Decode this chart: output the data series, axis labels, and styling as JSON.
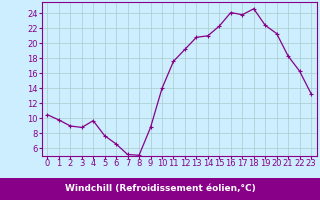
{
  "x": [
    0,
    1,
    2,
    3,
    4,
    5,
    6,
    7,
    8,
    9,
    10,
    11,
    12,
    13,
    14,
    15,
    16,
    17,
    18,
    19,
    20,
    21,
    22,
    23
  ],
  "y": [
    10.5,
    9.8,
    9.0,
    8.8,
    9.7,
    7.7,
    6.6,
    5.2,
    5.1,
    8.8,
    14.0,
    17.6,
    19.2,
    20.8,
    21.0,
    22.3,
    24.1,
    23.8,
    24.6,
    22.4,
    21.3,
    18.3,
    16.3,
    13.3
  ],
  "line_color": "#880088",
  "marker": "+",
  "marker_size": 3.5,
  "linewidth": 0.9,
  "bg_color": "#cceeff",
  "grid_color": "#aacccc",
  "xlabel": "Windchill (Refroidissement éolien,°C)",
  "xlabel_fontsize": 6.5,
  "tick_fontsize": 6.0,
  "ylim": [
    5,
    25.5
  ],
  "yticks": [
    6,
    8,
    10,
    12,
    14,
    16,
    18,
    20,
    22,
    24
  ],
  "xticks": [
    0,
    1,
    2,
    3,
    4,
    5,
    6,
    7,
    8,
    9,
    10,
    11,
    12,
    13,
    14,
    15,
    16,
    17,
    18,
    19,
    20,
    21,
    22,
    23
  ],
  "spine_color": "#880088",
  "xlabel_bg_color": "#880088",
  "xlabel_text_color": "#ffffff"
}
